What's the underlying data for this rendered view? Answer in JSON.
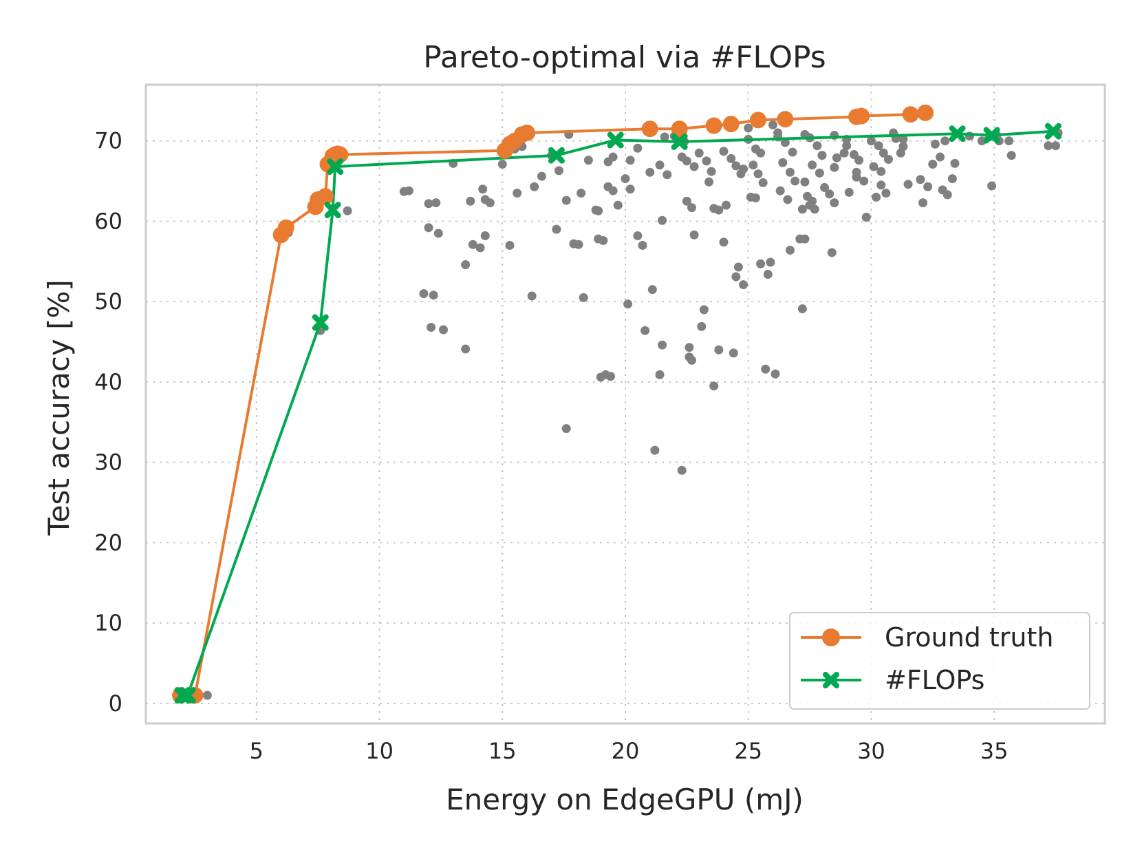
{
  "chart_data": {
    "type": "scatter",
    "title": "Pareto-optimal via #FLOPs",
    "xlabel": "Energy on EdgeGPU (mJ)",
    "ylabel": "Test accuracy [%]",
    "xlim": [
      0.5,
      39.5
    ],
    "ylim": [
      -2.5,
      77
    ],
    "xticks": [
      5,
      10,
      15,
      20,
      25,
      30,
      35
    ],
    "yticks": [
      0,
      10,
      20,
      30,
      40,
      50,
      60,
      70
    ],
    "grid": true,
    "legend_position": "bottom-right",
    "colors": {
      "scatter": "#808080",
      "ground_truth": "#E87B2F",
      "flops": "#00A84F",
      "grid": "#C8C8C8",
      "frame": "#CCCCCC"
    },
    "background_points": [
      [
        2.3,
        1.0
      ],
      [
        2.6,
        1.0
      ],
      [
        3.0,
        1.0
      ],
      [
        6.3,
        58.6
      ],
      [
        6.1,
        58.2
      ],
      [
        8.7,
        61.3
      ],
      [
        7.6,
        46.4
      ],
      [
        11.0,
        63.7
      ],
      [
        11.2,
        63.8
      ],
      [
        12.0,
        62.2
      ],
      [
        12.3,
        62.3
      ],
      [
        12.0,
        59.2
      ],
      [
        12.4,
        58.5
      ],
      [
        11.8,
        51.0
      ],
      [
        12.2,
        50.8
      ],
      [
        12.1,
        46.8
      ],
      [
        12.6,
        46.5
      ],
      [
        13.0,
        67.2
      ],
      [
        13.7,
        62.5
      ],
      [
        14.2,
        64.0
      ],
      [
        14.3,
        62.7
      ],
      [
        14.5,
        62.3
      ],
      [
        13.5,
        54.6
      ],
      [
        13.8,
        57.1
      ],
      [
        14.1,
        56.7
      ],
      [
        14.3,
        58.2
      ],
      [
        13.5,
        44.1
      ],
      [
        15.3,
        57.0
      ],
      [
        15.0,
        67.1
      ],
      [
        15.5,
        69.0
      ],
      [
        15.8,
        69.3
      ],
      [
        15.6,
        63.5
      ],
      [
        16.3,
        64.3
      ],
      [
        16.6,
        65.6
      ],
      [
        16.2,
        50.7
      ],
      [
        17.0,
        68.2
      ],
      [
        17.3,
        66.3
      ],
      [
        17.6,
        62.6
      ],
      [
        17.2,
        59.0
      ],
      [
        17.9,
        57.2
      ],
      [
        18.1,
        57.1
      ],
      [
        17.6,
        34.2
      ],
      [
        18.3,
        50.5
      ],
      [
        18.2,
        63.5
      ],
      [
        18.5,
        67.6
      ],
      [
        18.8,
        61.4
      ],
      [
        18.9,
        61.3
      ],
      [
        18.9,
        57.8
      ],
      [
        19.1,
        57.6
      ],
      [
        19.3,
        64.3
      ],
      [
        19.5,
        63.8
      ],
      [
        19.7,
        62.0
      ],
      [
        19.3,
        67.4
      ],
      [
        19.5,
        68.0
      ],
      [
        19.0,
        40.6
      ],
      [
        19.2,
        40.9
      ],
      [
        19.4,
        40.7
      ],
      [
        20.2,
        67.6
      ],
      [
        20.5,
        69.1
      ],
      [
        20.0,
        65.3
      ],
      [
        20.2,
        64.0
      ],
      [
        20.5,
        58.2
      ],
      [
        20.7,
        57.0
      ],
      [
        20.1,
        49.7
      ],
      [
        20.8,
        46.4
      ],
      [
        21.1,
        51.5
      ],
      [
        21.2,
        31.5
      ],
      [
        21.0,
        66.1
      ],
      [
        21.4,
        67.0
      ],
      [
        21.7,
        65.8
      ],
      [
        21.5,
        60.1
      ],
      [
        21.5,
        44.6
      ],
      [
        21.4,
        40.9
      ],
      [
        22.0,
        70.6
      ],
      [
        22.4,
        69.9
      ],
      [
        22.3,
        68.0
      ],
      [
        22.5,
        67.5
      ],
      [
        22.8,
        66.8
      ],
      [
        22.5,
        62.5
      ],
      [
        22.7,
        61.7
      ],
      [
        22.8,
        58.3
      ],
      [
        22.6,
        44.3
      ],
      [
        22.6,
        43.1
      ],
      [
        22.7,
        42.7
      ],
      [
        22.3,
        29.0
      ],
      [
        23.0,
        68.5
      ],
      [
        23.3,
        67.5
      ],
      [
        23.5,
        66.2
      ],
      [
        23.4,
        64.9
      ],
      [
        23.6,
        61.6
      ],
      [
        23.8,
        61.4
      ],
      [
        24.0,
        57.4
      ],
      [
        23.1,
        46.9
      ],
      [
        23.2,
        49.0
      ],
      [
        23.6,
        39.5
      ],
      [
        23.8,
        44.0
      ],
      [
        24.4,
        43.6
      ],
      [
        24.0,
        68.7
      ],
      [
        24.3,
        67.8
      ],
      [
        24.5,
        66.9
      ],
      [
        24.7,
        65.9
      ],
      [
        24.8,
        66.5
      ],
      [
        24.1,
        62.0
      ],
      [
        24.6,
        54.3
      ],
      [
        24.5,
        53.1
      ],
      [
        24.8,
        52.1
      ],
      [
        25.0,
        70.2
      ],
      [
        25.3,
        69.0
      ],
      [
        25.5,
        68.5
      ],
      [
        25.2,
        67.0
      ],
      [
        25.4,
        65.9
      ],
      [
        25.6,
        64.8
      ],
      [
        25.1,
        63.0
      ],
      [
        25.3,
        62.9
      ],
      [
        25.5,
        54.7
      ],
      [
        25.9,
        54.9
      ],
      [
        25.8,
        53.4
      ],
      [
        25.7,
        41.6
      ],
      [
        26.1,
        41.0
      ],
      [
        26.0,
        72.0
      ],
      [
        26.2,
        70.5
      ],
      [
        26.5,
        69.8
      ],
      [
        26.8,
        68.6
      ],
      [
        26.4,
        67.3
      ],
      [
        26.7,
        66.1
      ],
      [
        26.9,
        65.0
      ],
      [
        26.3,
        63.8
      ],
      [
        26.6,
        62.7
      ],
      [
        26.7,
        56.4
      ],
      [
        27.1,
        57.8
      ],
      [
        27.3,
        57.8
      ],
      [
        27.2,
        49.1
      ],
      [
        27.5,
        70.4
      ],
      [
        27.8,
        69.4
      ],
      [
        28.0,
        68.2
      ],
      [
        27.6,
        67.0
      ],
      [
        27.9,
        66.0
      ],
      [
        27.3,
        64.9
      ],
      [
        27.4,
        63.1
      ],
      [
        27.6,
        62.5
      ],
      [
        27.7,
        61.5
      ],
      [
        27.5,
        62.0
      ],
      [
        27.2,
        61.5
      ],
      [
        28.1,
        64.2
      ],
      [
        28.3,
        63.4
      ],
      [
        28.5,
        62.3
      ],
      [
        28.4,
        56.1
      ],
      [
        28.5,
        66.7
      ],
      [
        28.6,
        67.9
      ],
      [
        28.9,
        68.5
      ],
      [
        29.0,
        69.4
      ],
      [
        29.3,
        68.3
      ],
      [
        29.5,
        67.6
      ],
      [
        29.4,
        65.5
      ],
      [
        29.1,
        63.6
      ],
      [
        29.4,
        66.1
      ],
      [
        29.7,
        65.0
      ],
      [
        29.8,
        60.5
      ],
      [
        30.0,
        70.0
      ],
      [
        30.3,
        69.4
      ],
      [
        30.5,
        68.5
      ],
      [
        30.7,
        67.7
      ],
      [
        30.1,
        66.8
      ],
      [
        30.4,
        66.2
      ],
      [
        30.2,
        63.0
      ],
      [
        30.6,
        63.5
      ],
      [
        30.4,
        64.5
      ],
      [
        31.0,
        70.3
      ],
      [
        31.3,
        69.3
      ],
      [
        31.2,
        68.5
      ],
      [
        31.5,
        64.6
      ],
      [
        32.0,
        65.2
      ],
      [
        32.3,
        64.3
      ],
      [
        32.1,
        62.3
      ],
      [
        32.5,
        67.1
      ],
      [
        32.8,
        68.0
      ],
      [
        32.6,
        69.6
      ],
      [
        33.0,
        70.0
      ],
      [
        33.4,
        67.2
      ],
      [
        32.9,
        63.9
      ],
      [
        33.1,
        63.3
      ],
      [
        33.3,
        65.3
      ],
      [
        34.0,
        70.6
      ],
      [
        34.5,
        70.0
      ],
      [
        34.8,
        70.5
      ],
      [
        34.9,
        64.4
      ],
      [
        35.1,
        70.7
      ],
      [
        35.2,
        70.0
      ],
      [
        35.6,
        70.0
      ],
      [
        35.7,
        68.2
      ],
      [
        37.2,
        69.4
      ],
      [
        37.5,
        69.4
      ],
      [
        37.6,
        71.0
      ],
      [
        25.0,
        71.6
      ],
      [
        26.2,
        71.0
      ],
      [
        27.3,
        70.8
      ],
      [
        28.5,
        70.7
      ],
      [
        29.0,
        70.2
      ],
      [
        30.9,
        71.0
      ],
      [
        31.3,
        70.2
      ],
      [
        21.6,
        70.5
      ],
      [
        22.3,
        70.2
      ],
      [
        17.7,
        70.8
      ]
    ],
    "series": [
      {
        "name": "Ground truth",
        "marker": "circle",
        "x": [
          1.9,
          2.3,
          2.5,
          6.0,
          6.2,
          7.4,
          7.5,
          7.8,
          7.9,
          8.1,
          8.2,
          8.3,
          8.4,
          15.1,
          15.3,
          15.5,
          15.8,
          16.0,
          21.0,
          22.2,
          23.6,
          24.3,
          25.4,
          26.5,
          29.4,
          29.6,
          31.6,
          32.2
        ],
        "y": [
          1.0,
          1.0,
          1.0,
          58.3,
          59.2,
          61.8,
          62.7,
          63.1,
          67.1,
          68.1,
          68.3,
          68.4,
          68.3,
          68.8,
          69.6,
          70.0,
          70.8,
          71.0,
          71.5,
          71.5,
          71.9,
          72.1,
          72.6,
          72.7,
          73.0,
          73.1,
          73.3,
          73.5
        ]
      },
      {
        "name": "#FLOPs",
        "marker": "x",
        "x": [
          2.0,
          2.2,
          7.6,
          8.1,
          8.2,
          17.2,
          19.6,
          22.2,
          33.5,
          34.9,
          37.4
        ],
        "y": [
          1.0,
          1.0,
          47.4,
          61.4,
          66.8,
          68.2,
          70.1,
          69.9,
          70.9,
          70.7,
          71.2
        ]
      }
    ]
  }
}
